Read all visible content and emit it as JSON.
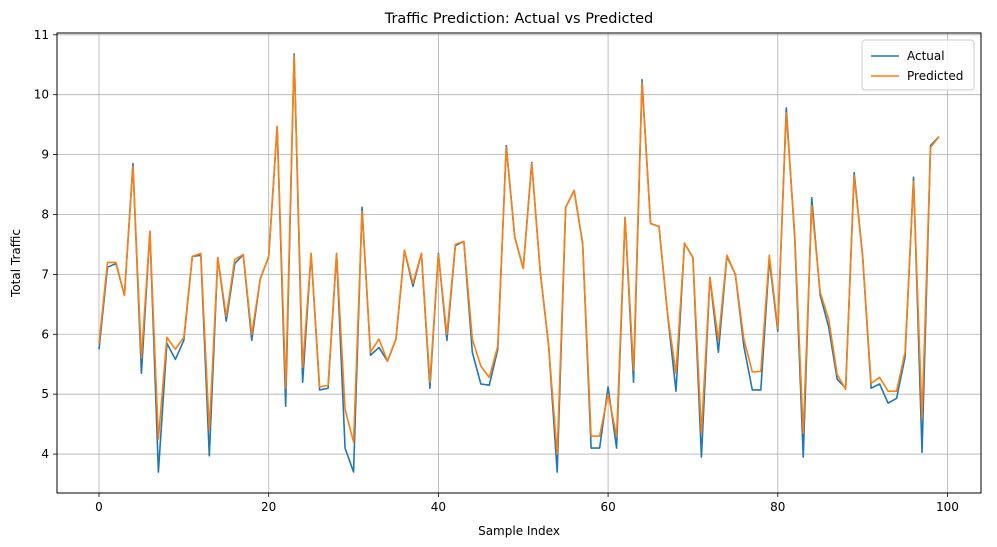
{
  "chart_data": {
    "type": "line",
    "title": "Traffic Prediction: Actual vs Predicted",
    "xlabel": "Sample Index",
    "ylabel": "Total Traffic",
    "xlim": [
      -4.95,
      103.95
    ],
    "ylim": [
      3.35,
      11.03
    ],
    "xticks": [
      0,
      20,
      40,
      60,
      80,
      100
    ],
    "yticks": [
      4,
      5,
      6,
      7,
      8,
      9,
      10,
      11
    ],
    "grid": true,
    "legend_position": "top-right",
    "x": [
      0,
      1,
      2,
      3,
      4,
      5,
      6,
      7,
      8,
      9,
      10,
      11,
      12,
      13,
      14,
      15,
      16,
      17,
      18,
      19,
      20,
      21,
      22,
      23,
      24,
      25,
      26,
      27,
      28,
      29,
      30,
      31,
      32,
      33,
      34,
      35,
      36,
      37,
      38,
      39,
      40,
      41,
      42,
      43,
      44,
      45,
      46,
      47,
      48,
      49,
      50,
      51,
      52,
      53,
      54,
      55,
      56,
      57,
      58,
      59,
      60,
      61,
      62,
      63,
      64,
      65,
      66,
      67,
      68,
      69,
      70,
      71,
      72,
      73,
      74,
      75,
      76,
      77,
      78,
      79,
      80,
      81,
      82,
      83,
      84,
      85,
      86,
      87,
      88,
      89,
      90,
      91,
      92,
      93,
      94,
      95,
      96,
      97,
      98,
      99
    ],
    "series": [
      {
        "name": "Actual",
        "color": "#1f77b4",
        "values": [
          5.75,
          7.12,
          7.18,
          6.65,
          8.85,
          5.35,
          7.72,
          3.7,
          5.85,
          5.58,
          5.9,
          7.3,
          7.32,
          3.97,
          7.28,
          6.22,
          7.18,
          7.33,
          5.9,
          6.92,
          7.3,
          9.47,
          4.8,
          10.68,
          5.2,
          7.35,
          5.07,
          5.1,
          7.35,
          4.1,
          3.7,
          8.12,
          5.65,
          5.78,
          5.55,
          5.92,
          7.4,
          6.8,
          7.35,
          5.1,
          7.35,
          5.9,
          7.48,
          7.55,
          5.7,
          5.17,
          5.15,
          5.75,
          9.15,
          7.62,
          7.1,
          8.87,
          7.05,
          5.8,
          3.7,
          8.12,
          8.4,
          7.52,
          4.1,
          4.1,
          5.12,
          4.1,
          7.95,
          5.2,
          10.25,
          7.85,
          7.8,
          6.35,
          5.05,
          7.52,
          7.28,
          3.95,
          6.95,
          5.7,
          7.3,
          7.0,
          5.8,
          5.07,
          5.07,
          7.25,
          6.05,
          9.78,
          7.6,
          3.95,
          8.28,
          6.65,
          6.12,
          5.25,
          5.1,
          8.7,
          7.3,
          5.1,
          5.17,
          4.85,
          4.93,
          5.62,
          8.62,
          4.03,
          9.15,
          9.3
        ]
      },
      {
        "name": "Predicted",
        "color": "#ff7f0e",
        "values": [
          5.85,
          7.2,
          7.2,
          6.65,
          8.8,
          5.6,
          7.72,
          4.25,
          5.95,
          5.75,
          5.95,
          7.3,
          7.35,
          4.4,
          7.28,
          6.3,
          7.25,
          7.33,
          6.0,
          6.92,
          7.3,
          9.47,
          5.1,
          10.65,
          5.45,
          7.35,
          5.12,
          5.15,
          7.35,
          4.75,
          4.2,
          8.05,
          5.7,
          5.92,
          5.55,
          5.92,
          7.4,
          6.85,
          7.35,
          5.2,
          7.33,
          6.0,
          7.5,
          7.55,
          5.92,
          5.47,
          5.28,
          5.8,
          9.12,
          7.62,
          7.1,
          8.85,
          7.05,
          5.8,
          4.0,
          8.12,
          8.4,
          7.5,
          4.3,
          4.3,
          5.0,
          4.3,
          7.95,
          5.4,
          10.2,
          7.85,
          7.8,
          6.35,
          5.35,
          7.52,
          7.28,
          4.35,
          6.95,
          5.9,
          7.32,
          7.0,
          5.92,
          5.37,
          5.38,
          7.32,
          6.1,
          9.7,
          7.65,
          4.35,
          8.15,
          6.7,
          6.25,
          5.33,
          5.08,
          8.65,
          7.3,
          5.18,
          5.28,
          5.05,
          5.05,
          5.7,
          8.55,
          4.6,
          9.12,
          9.3
        ]
      }
    ]
  }
}
